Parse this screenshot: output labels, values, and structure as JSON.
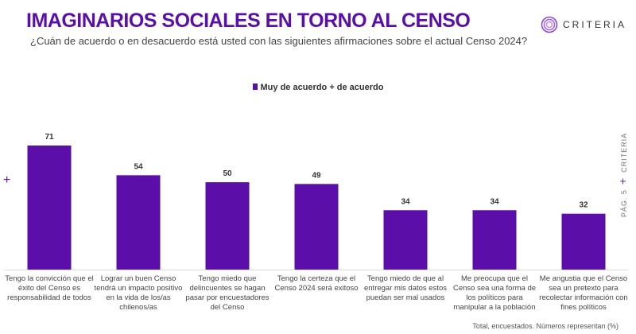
{
  "header": {
    "title": "IMAGINARIOS SOCIALES EN TORNO AL CENSO",
    "subtitle": "¿Cuán de acuerdo o en desacuerdo está usted con las siguientes afirmaciones sobre el actual Censo 2024?",
    "logo_text": "CRITERIA"
  },
  "side": {
    "brand": "CRITERIA",
    "page": "PÁG. 5"
  },
  "footer_note": "Total, encuestados. Números representan (%)",
  "colors": {
    "bar": "#5b0fa8",
    "title": "#5a0fa8"
  },
  "chart_data": {
    "type": "bar",
    "legend": [
      "Muy de acuerdo + de acuerdo"
    ],
    "legend_position": "top",
    "grid": false,
    "ylim": [
      0,
      75
    ],
    "categories": [
      "Tengo la convicción que el éxito del Censo es responsabilidad de todos",
      "Lograr un buen Censo tendrá un impacto positivo en la vida de los/as chilenos/as",
      "Tengo miedo que delincuentes se hagan pasar por encuestadores del Censo",
      "Tengo la certeza que el Censo 2024 será exitoso",
      "Tengo miedo de que al entregar mis datos estos puedan ser mal usados",
      "Me preocupa que el Censo sea una forma de los políticos para manipular a la población",
      "Me angustia que el Censo sea un pretexto para recolectar información con fines políticos"
    ],
    "series": [
      {
        "name": "Muy de acuerdo + de acuerdo",
        "values": [
          71,
          54,
          50,
          49,
          34,
          34,
          32
        ]
      }
    ]
  }
}
